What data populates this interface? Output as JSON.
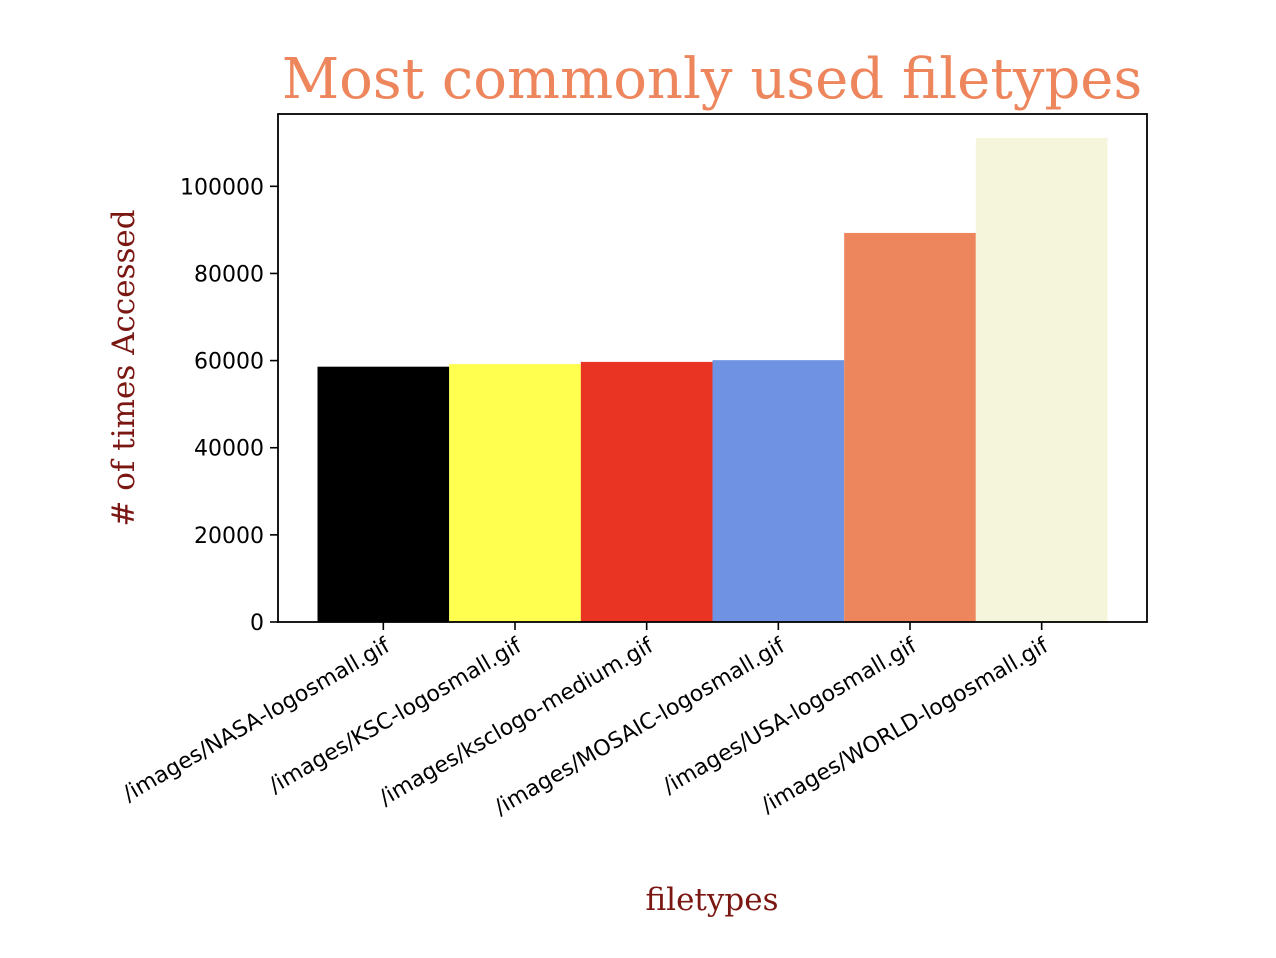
{
  "chart_data": {
    "type": "bar",
    "title": "Most commonly used filetypes",
    "xlabel": "filetypes",
    "ylabel": "# of times Accessed",
    "categories": [
      "/images/NASA-logosmall.gif",
      "/images/KSC-logosmall.gif",
      "/images/ksclogo-medium.gif",
      "/images/MOSAIC-logosmall.gif",
      "/images/USA-logosmall.gif",
      "/images/WORLD-logosmall.gif"
    ],
    "values": [
      58600,
      59200,
      59700,
      60100,
      89300,
      111100
    ],
    "colors": [
      "#000000",
      "#ffff4f",
      "#e93423",
      "#6f93e2",
      "#ee865d",
      "#f5f5dc"
    ],
    "ylim": [
      0,
      116600
    ],
    "yticks": [
      0,
      20000,
      40000,
      60000,
      80000,
      100000
    ],
    "grid": false,
    "title_color": "#ee865d",
    "label_color": "#7a1712"
  }
}
